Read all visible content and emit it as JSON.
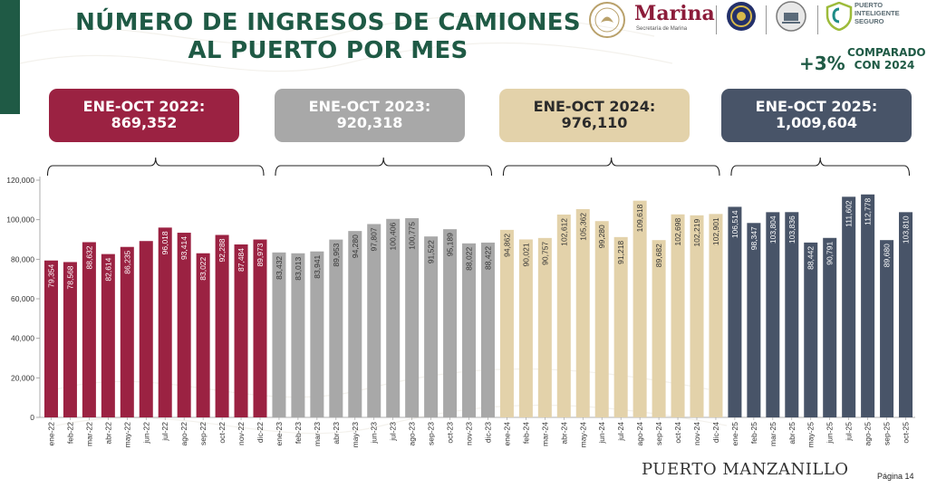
{
  "title": "NÚMERO DE INGRESOS DE CAMIONES AL PUERTO POR MES",
  "logos": {
    "marina_word": "Marina",
    "marina_sub": "Secretaría de Marina",
    "pis_text": "PUERTO INTELIGENTE SEGURO"
  },
  "comparison": {
    "pct": "+3%",
    "text": "COMPARADO CON 2024"
  },
  "summaries": [
    {
      "label": "ENE-OCT 2022:",
      "value": "869,352",
      "color": "#9b2242"
    },
    {
      "label": "ENE-OCT 2023:",
      "value": "920,318",
      "color": "#a8a8a8"
    },
    {
      "label": "ENE-OCT 2024:",
      "value": "976,110",
      "color": "#e3d2aa"
    },
    {
      "label": "ENE-OCT 2025:",
      "value": "1,009,604",
      "color": "#485468"
    }
  ],
  "chart_data": {
    "type": "bar",
    "title": "",
    "xlabel": "",
    "ylabel": "",
    "ylim": [
      0,
      120000
    ],
    "yticks": [
      "0",
      "20,000",
      "40,000",
      "60,000",
      "80,000",
      "100,000",
      "120,000"
    ],
    "ytick_values": [
      0,
      20000,
      40000,
      60000,
      80000,
      100000,
      120000
    ],
    "categories": [
      "ene-22",
      "feb-22",
      "mar-22",
      "abr-22",
      "may-22",
      "jun-22",
      "jul-22",
      "ago-22",
      "sep-22",
      "oct-22",
      "nov-22",
      "dic-22",
      "ene-23",
      "feb-23",
      "mar-23",
      "abr-23",
      "may-23",
      "jun-23",
      "jul-23",
      "ago-23",
      "sep-23",
      "oct-23",
      "nov-23",
      "dic-23",
      "ene-24",
      "feb-24",
      "mar-24",
      "abr-24",
      "may-24",
      "jun-24",
      "jul-24",
      "ago-24",
      "sep-24",
      "oct-24",
      "nov-24",
      "dic-24",
      "ene-25",
      "feb-25",
      "mar-25",
      "abr-25",
      "may-25",
      "jun-25",
      "jul-25",
      "ago-25",
      "sep-25",
      "oct-25"
    ],
    "values": [
      79354,
      78568,
      88632,
      82614,
      86235,
      89207,
      96018,
      93414,
      83022,
      92288,
      87484,
      89973,
      83432,
      83013,
      83941,
      89953,
      94280,
      97807,
      100406,
      100775,
      91522,
      95189,
      88022,
      88422,
      94862,
      90021,
      90757,
      102612,
      105362,
      99280,
      91218,
      109618,
      89682,
      102698,
      102219,
      102901,
      106514,
      98347,
      103804,
      103836,
      88442,
      90791,
      111602,
      112778,
      89680,
      103810
    ],
    "value_labels": [
      "79,354",
      "78,568",
      "88,632",
      "82,614",
      "86,235",
      "",
      "96,018",
      "93,414",
      "83,022",
      "92,288",
      "87,484",
      "89,973",
      "83,432",
      "83,013",
      "83,941",
      "89,953",
      "94,280",
      "97,807",
      "100,406",
      "100,775",
      "91,522",
      "95,189",
      "88,022",
      "88,422",
      "94,862",
      "90,021",
      "90,757",
      "102,612",
      "105,362",
      "99,280",
      "91,218",
      "109,618",
      "89,682",
      "102,698",
      "102,219",
      "102,901",
      "106,514",
      "98,347",
      "103,804",
      "103,836",
      "88,442",
      "90,791",
      "111,602",
      "112,778",
      "89,680",
      "103,810"
    ],
    "series_colors": [
      "#9b2242",
      "#a8a8a8",
      "#e3d2aa",
      "#485468"
    ]
  },
  "footer": {
    "brand": "PUERTO MANZANILLO",
    "page": "Página 14"
  }
}
